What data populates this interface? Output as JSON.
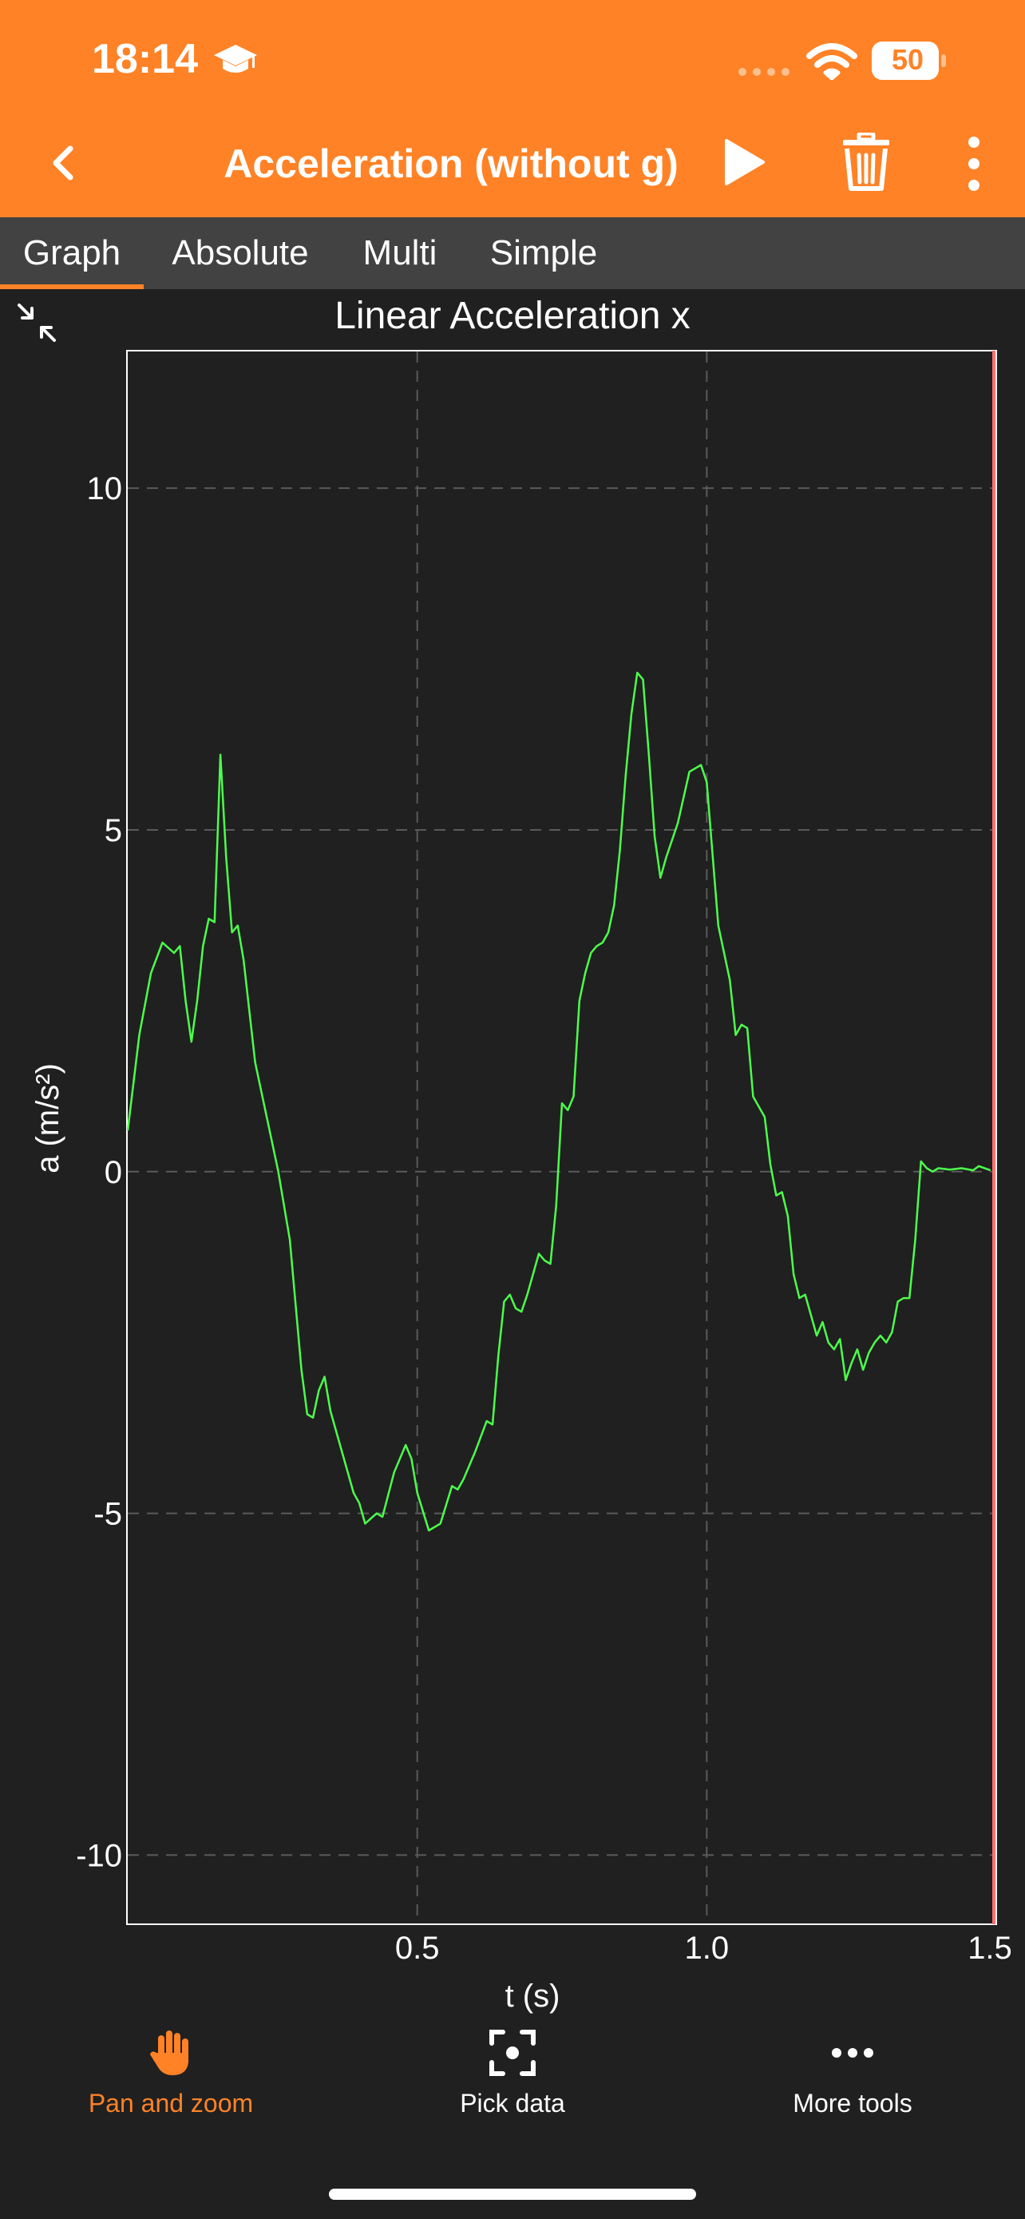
{
  "status": {
    "time": "18:14",
    "battery": "50",
    "icons": [
      "graduation-cap-icon",
      "signal-dots-icon",
      "wifi-icon",
      "battery-icon"
    ]
  },
  "header": {
    "title": "Acceleration (without g)",
    "icons": [
      "chevron-left-icon",
      "play-icon",
      "trash-icon",
      "more-vertical-icon"
    ]
  },
  "tabs": [
    {
      "label": "Graph",
      "active": true
    },
    {
      "label": "Absolute",
      "active": false
    },
    {
      "label": "Multi",
      "active": false
    },
    {
      "label": "Simple",
      "active": false
    }
  ],
  "toolbar": {
    "pan": "Pan and zoom",
    "pick": "Pick data",
    "more": "More tools"
  },
  "colors": {
    "accent": "#ff8226",
    "background": "#202020",
    "tabbar": "#424242",
    "line": "#4cff4c",
    "edge_marker": "#ff7070"
  },
  "chart_data": {
    "type": "line",
    "title": "Linear Acceleration x",
    "xlabel": "t (s)",
    "ylabel": "a (m/s²)",
    "xlim": [
      0.0,
      1.5
    ],
    "ylim": [
      -11.0,
      12.0
    ],
    "xticks": [
      "0.5",
      "1.0",
      "1.5"
    ],
    "yticks": [
      "10",
      "5",
      "0",
      "-5",
      "-10"
    ],
    "grid": true,
    "series": [
      {
        "points": [
          [
            0.0,
            0.6
          ],
          [
            0.02,
            2.0
          ],
          [
            0.04,
            2.9
          ],
          [
            0.06,
            3.35
          ],
          [
            0.08,
            3.2
          ],
          [
            0.09,
            3.3
          ],
          [
            0.1,
            2.5
          ],
          [
            0.11,
            1.9
          ],
          [
            0.12,
            2.5
          ],
          [
            0.13,
            3.3
          ],
          [
            0.14,
            3.7
          ],
          [
            0.15,
            3.65
          ],
          [
            0.16,
            6.1
          ],
          [
            0.17,
            4.6
          ],
          [
            0.18,
            3.5
          ],
          [
            0.19,
            3.6
          ],
          [
            0.2,
            3.1
          ],
          [
            0.22,
            1.6
          ],
          [
            0.24,
            0.8
          ],
          [
            0.26,
            0.0
          ],
          [
            0.28,
            -1.0
          ],
          [
            0.3,
            -2.9
          ],
          [
            0.31,
            -3.55
          ],
          [
            0.32,
            -3.6
          ],
          [
            0.33,
            -3.2
          ],
          [
            0.34,
            -3.0
          ],
          [
            0.35,
            -3.5
          ],
          [
            0.37,
            -4.1
          ],
          [
            0.39,
            -4.7
          ],
          [
            0.4,
            -4.85
          ],
          [
            0.41,
            -5.15
          ],
          [
            0.43,
            -5.0
          ],
          [
            0.44,
            -5.05
          ],
          [
            0.46,
            -4.4
          ],
          [
            0.48,
            -4.0
          ],
          [
            0.49,
            -4.2
          ],
          [
            0.5,
            -4.7
          ],
          [
            0.52,
            -5.25
          ],
          [
            0.54,
            -5.15
          ],
          [
            0.56,
            -4.6
          ],
          [
            0.57,
            -4.65
          ],
          [
            0.58,
            -4.5
          ],
          [
            0.6,
            -4.1
          ],
          [
            0.62,
            -3.65
          ],
          [
            0.63,
            -3.7
          ],
          [
            0.64,
            -2.7
          ],
          [
            0.65,
            -1.9
          ],
          [
            0.66,
            -1.8
          ],
          [
            0.67,
            -2.0
          ],
          [
            0.68,
            -2.05
          ],
          [
            0.69,
            -1.8
          ],
          [
            0.71,
            -1.2
          ],
          [
            0.72,
            -1.3
          ],
          [
            0.73,
            -1.35
          ],
          [
            0.74,
            -0.5
          ],
          [
            0.75,
            1.0
          ],
          [
            0.76,
            0.9
          ],
          [
            0.77,
            1.1
          ],
          [
            0.78,
            2.5
          ],
          [
            0.79,
            2.9
          ],
          [
            0.8,
            3.2
          ],
          [
            0.81,
            3.3
          ],
          [
            0.82,
            3.35
          ],
          [
            0.83,
            3.5
          ],
          [
            0.84,
            3.9
          ],
          [
            0.85,
            4.7
          ],
          [
            0.86,
            5.8
          ],
          [
            0.87,
            6.7
          ],
          [
            0.88,
            7.3
          ],
          [
            0.89,
            7.2
          ],
          [
            0.9,
            6.1
          ],
          [
            0.91,
            4.9
          ],
          [
            0.92,
            4.3
          ],
          [
            0.93,
            4.6
          ],
          [
            0.95,
            5.1
          ],
          [
            0.97,
            5.85
          ],
          [
            0.99,
            5.95
          ],
          [
            1.0,
            5.7
          ],
          [
            1.02,
            3.6
          ],
          [
            1.04,
            2.8
          ],
          [
            1.05,
            2.0
          ],
          [
            1.06,
            2.15
          ],
          [
            1.07,
            2.1
          ],
          [
            1.08,
            1.1
          ],
          [
            1.09,
            0.95
          ],
          [
            1.1,
            0.8
          ],
          [
            1.11,
            0.1
          ],
          [
            1.12,
            -0.35
          ],
          [
            1.13,
            -0.3
          ],
          [
            1.14,
            -0.65
          ],
          [
            1.15,
            -1.5
          ],
          [
            1.16,
            -1.85
          ],
          [
            1.17,
            -1.8
          ],
          [
            1.18,
            -2.1
          ],
          [
            1.19,
            -2.4
          ],
          [
            1.2,
            -2.2
          ],
          [
            1.21,
            -2.5
          ],
          [
            1.22,
            -2.6
          ],
          [
            1.23,
            -2.45
          ],
          [
            1.24,
            -3.05
          ],
          [
            1.25,
            -2.8
          ],
          [
            1.26,
            -2.6
          ],
          [
            1.27,
            -2.9
          ],
          [
            1.28,
            -2.65
          ],
          [
            1.29,
            -2.5
          ],
          [
            1.3,
            -2.4
          ],
          [
            1.31,
            -2.5
          ],
          [
            1.32,
            -2.35
          ],
          [
            1.33,
            -1.9
          ],
          [
            1.34,
            -1.85
          ],
          [
            1.35,
            -1.85
          ],
          [
            1.36,
            -1.0
          ],
          [
            1.37,
            0.15
          ],
          [
            1.38,
            0.05
          ],
          [
            1.39,
            0.0
          ],
          [
            1.4,
            0.05
          ],
          [
            1.42,
            0.03
          ],
          [
            1.44,
            0.05
          ],
          [
            1.46,
            0.02
          ],
          [
            1.47,
            0.08
          ],
          [
            1.49,
            0.02
          ]
        ]
      }
    ]
  }
}
